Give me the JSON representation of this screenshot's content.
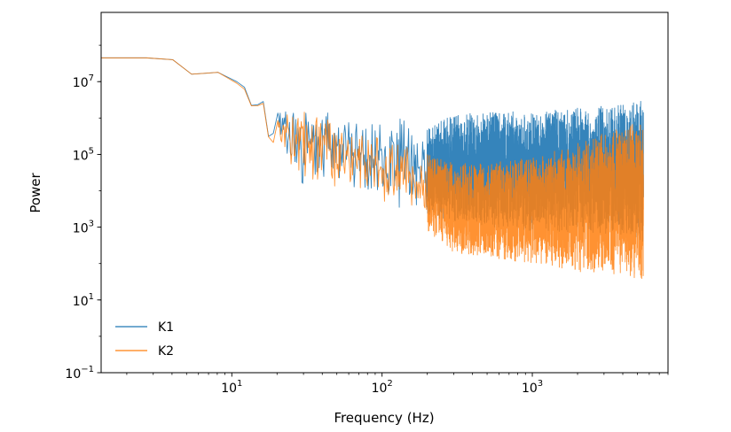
{
  "chart_data": {
    "type": "line",
    "title": "",
    "xlabel": "Frequency (Hz)",
    "ylabel": "Power",
    "xscale": "log",
    "yscale": "log",
    "xlim": [
      1.35,
      8000
    ],
    "ylim": [
      0.1,
      800000000
    ],
    "grid": false,
    "legend_position": "lower-left",
    "x_ticks": [
      {
        "value": 10,
        "base": "10",
        "exp": "1"
      },
      {
        "value": 100,
        "base": "10",
        "exp": "2"
      },
      {
        "value": 1000,
        "base": "10",
        "exp": "3"
      }
    ],
    "y_ticks": [
      {
        "value": 0.1,
        "base": "10",
        "exp": "−1"
      },
      {
        "value": 10,
        "base": "10",
        "exp": "1"
      },
      {
        "value": 1000,
        "base": "10",
        "exp": "3"
      },
      {
        "value": 100000,
        "base": "10",
        "exp": "5"
      },
      {
        "value": 10000000,
        "base": "10",
        "exp": "7"
      }
    ],
    "series": [
      {
        "name": "K1",
        "color": "#1f77b4",
        "x_range": [
          1.35,
          5500
        ],
        "envelope": [
          {
            "x": 1.35,
            "lo": 45000000,
            "hi": 45000000
          },
          {
            "x": 2.7,
            "lo": 45000000,
            "hi": 45000000
          },
          {
            "x": 4.05,
            "lo": 40000000,
            "hi": 40000000
          },
          {
            "x": 5.4,
            "lo": 16000000,
            "hi": 16000000
          },
          {
            "x": 8.1,
            "lo": 18000000,
            "hi": 18000000
          },
          {
            "x": 12,
            "lo": 8000000,
            "hi": 8000000
          },
          {
            "x": 14,
            "lo": 1500000,
            "hi": 1500000
          },
          {
            "x": 16,
            "lo": 4000000,
            "hi": 4000000
          },
          {
            "x": 18,
            "lo": 120000,
            "hi": 200000
          },
          {
            "x": 20,
            "lo": 500000,
            "hi": 1500000
          },
          {
            "x": 25,
            "lo": 30000,
            "hi": 1800000
          },
          {
            "x": 30,
            "lo": 15000,
            "hi": 3000000
          },
          {
            "x": 40,
            "lo": 20000,
            "hi": 1500000
          },
          {
            "x": 60,
            "lo": 15000,
            "hi": 1000000
          },
          {
            "x": 100,
            "lo": 5000,
            "hi": 900000
          },
          {
            "x": 150,
            "lo": 2500,
            "hi": 1000000
          },
          {
            "x": 200,
            "lo": 2000,
            "hi": 700000
          },
          {
            "x": 300,
            "lo": 1500,
            "hi": 1200000
          },
          {
            "x": 500,
            "lo": 1000,
            "hi": 1500000
          },
          {
            "x": 1000,
            "lo": 800,
            "hi": 1500000
          },
          {
            "x": 2000,
            "lo": 700,
            "hi": 2000000
          },
          {
            "x": 4000,
            "lo": 600,
            "hi": 2500000
          },
          {
            "x": 5500,
            "lo": 400,
            "hi": 3000000
          }
        ]
      },
      {
        "name": "K2",
        "color": "#ff7f0e",
        "x_range": [
          1.35,
          5500
        ],
        "envelope": [
          {
            "x": 1.35,
            "lo": 45000000,
            "hi": 45000000
          },
          {
            "x": 2.7,
            "lo": 45000000,
            "hi": 45000000
          },
          {
            "x": 4.05,
            "lo": 40000000,
            "hi": 40000000
          },
          {
            "x": 5.4,
            "lo": 16000000,
            "hi": 16000000
          },
          {
            "x": 8.1,
            "lo": 18000000,
            "hi": 18000000
          },
          {
            "x": 12,
            "lo": 7000000,
            "hi": 7000000
          },
          {
            "x": 14,
            "lo": 1500000,
            "hi": 1500000
          },
          {
            "x": 16,
            "lo": 3500000,
            "hi": 3500000
          },
          {
            "x": 18,
            "lo": 120000,
            "hi": 200000
          },
          {
            "x": 20,
            "lo": 300000,
            "hi": 1200000
          },
          {
            "x": 25,
            "lo": 40000,
            "hi": 1500000
          },
          {
            "x": 30,
            "lo": 20000,
            "hi": 3000000
          },
          {
            "x": 40,
            "lo": 15000,
            "hi": 1200000
          },
          {
            "x": 60,
            "lo": 10000,
            "hi": 800000
          },
          {
            "x": 100,
            "lo": 5000,
            "hi": 400000
          },
          {
            "x": 150,
            "lo": 2000,
            "hi": 200000
          },
          {
            "x": 200,
            "lo": 800,
            "hi": 100000
          },
          {
            "x": 300,
            "lo": 200,
            "hi": 60000
          },
          {
            "x": 500,
            "lo": 150,
            "hi": 60000
          },
          {
            "x": 1000,
            "lo": 100,
            "hi": 80000
          },
          {
            "x": 2000,
            "lo": 60,
            "hi": 200000
          },
          {
            "x": 4000,
            "lo": 50,
            "hi": 600000
          },
          {
            "x": 5500,
            "lo": 30,
            "hi": 900000
          }
        ]
      }
    ]
  }
}
